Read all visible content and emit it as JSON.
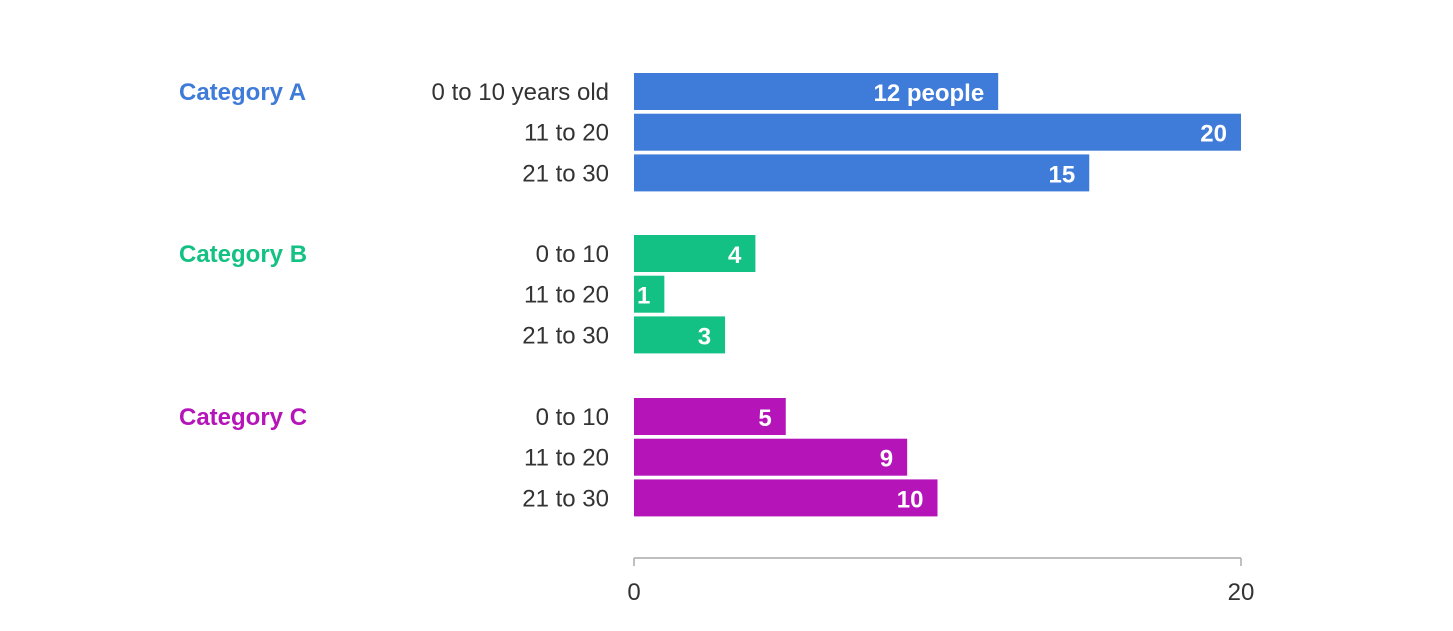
{
  "chart_data": {
    "type": "bar",
    "orientation": "horizontal",
    "xlim": [
      0,
      20
    ],
    "x_ticks": [
      "0",
      "20"
    ],
    "groups": [
      {
        "name": "Category A",
        "color": "#3f7bd9",
        "rows": [
          {
            "label": "0 to 10 years old",
            "value": 12,
            "value_label": "12 people"
          },
          {
            "label": "11 to 20",
            "value": 20,
            "value_label": "20"
          },
          {
            "label": "21 to 30",
            "value": 15,
            "value_label": "15"
          }
        ]
      },
      {
        "name": "Category B",
        "color": "#14c184",
        "rows": [
          {
            "label": "0 to 10",
            "value": 4,
            "value_label": "4"
          },
          {
            "label": "11 to 20",
            "value": 1,
            "value_label": "1"
          },
          {
            "label": "21 to 30",
            "value": 3,
            "value_label": "3"
          }
        ]
      },
      {
        "name": "Category C",
        "color": "#b515b8",
        "rows": [
          {
            "label": "0 to 10",
            "value": 5,
            "value_label": "5"
          },
          {
            "label": "11 to 20",
            "value": 9,
            "value_label": "9"
          },
          {
            "label": "21 to 30",
            "value": 10,
            "value_label": "10"
          }
        ]
      }
    ],
    "grid": false,
    "legend": "none"
  }
}
